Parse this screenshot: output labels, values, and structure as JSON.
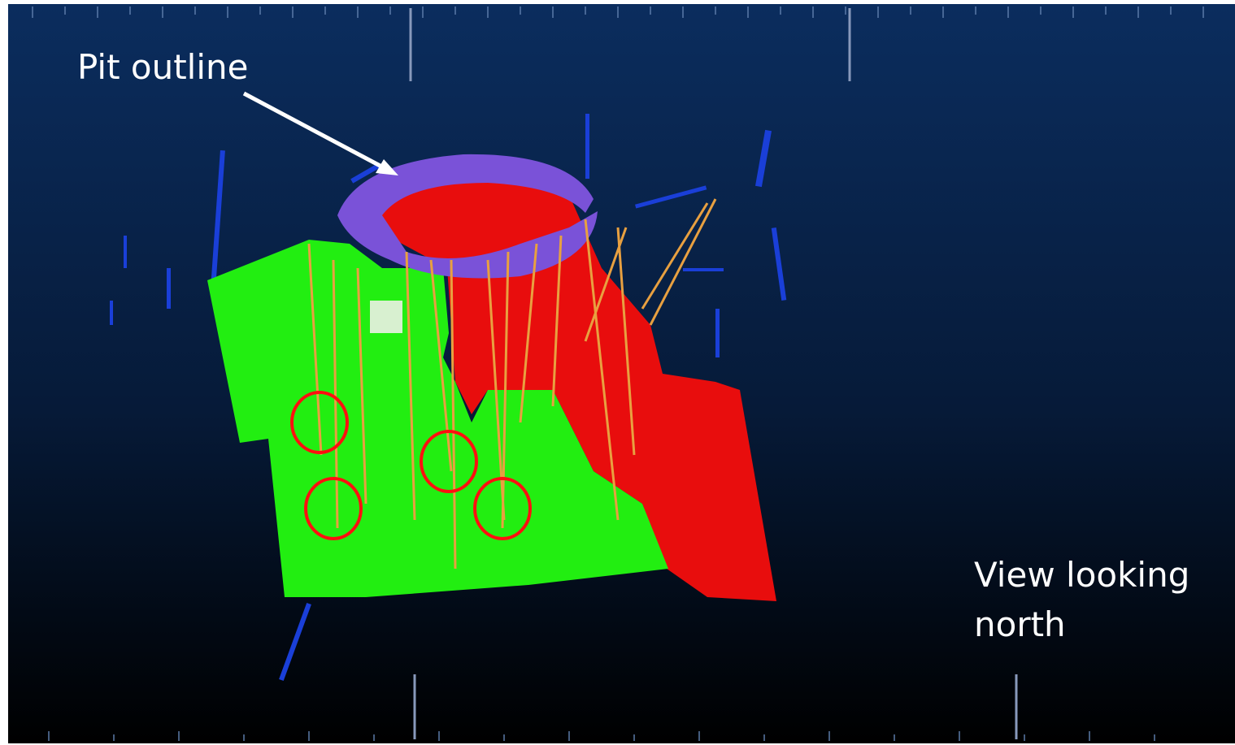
{
  "annotations": {
    "pit_label": "Pit outline",
    "view_label": [
      "View looking",
      "north"
    ]
  }
}
